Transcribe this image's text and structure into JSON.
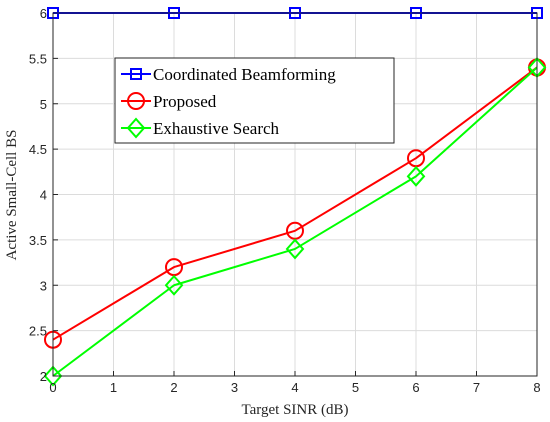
{
  "chart_data": {
    "type": "line",
    "xlabel": "Target SINR (dB)",
    "ylabel": "Active Small-Cell BS",
    "xlim": [
      0,
      8
    ],
    "ylim": [
      2,
      6
    ],
    "xticks": [
      0,
      1,
      2,
      3,
      4,
      5,
      6,
      7,
      8
    ],
    "yticks": [
      2,
      2.5,
      3,
      3.5,
      4,
      4.5,
      5,
      5.5,
      6
    ],
    "ytick_labels": [
      "2",
      "2.5",
      "3",
      "3.5",
      "4",
      "4.5",
      "5",
      "5.5",
      "6"
    ],
    "grid": true,
    "legend_position": "top-center",
    "x": [
      0,
      2,
      4,
      6,
      8
    ],
    "series": [
      {
        "name": "Coordinated Beamforming",
        "values": [
          6,
          6,
          6,
          6,
          6
        ],
        "color": "#0000ff",
        "marker": "square"
      },
      {
        "name": "Proposed",
        "values": [
          2.4,
          3.2,
          3.6,
          4.4,
          5.4
        ],
        "color": "#ff0000",
        "marker": "circle"
      },
      {
        "name": "Exhaustive Search",
        "values": [
          2.0,
          3.0,
          3.4,
          4.2,
          5.4
        ],
        "color": "#00ff00",
        "marker": "diamond"
      }
    ]
  }
}
